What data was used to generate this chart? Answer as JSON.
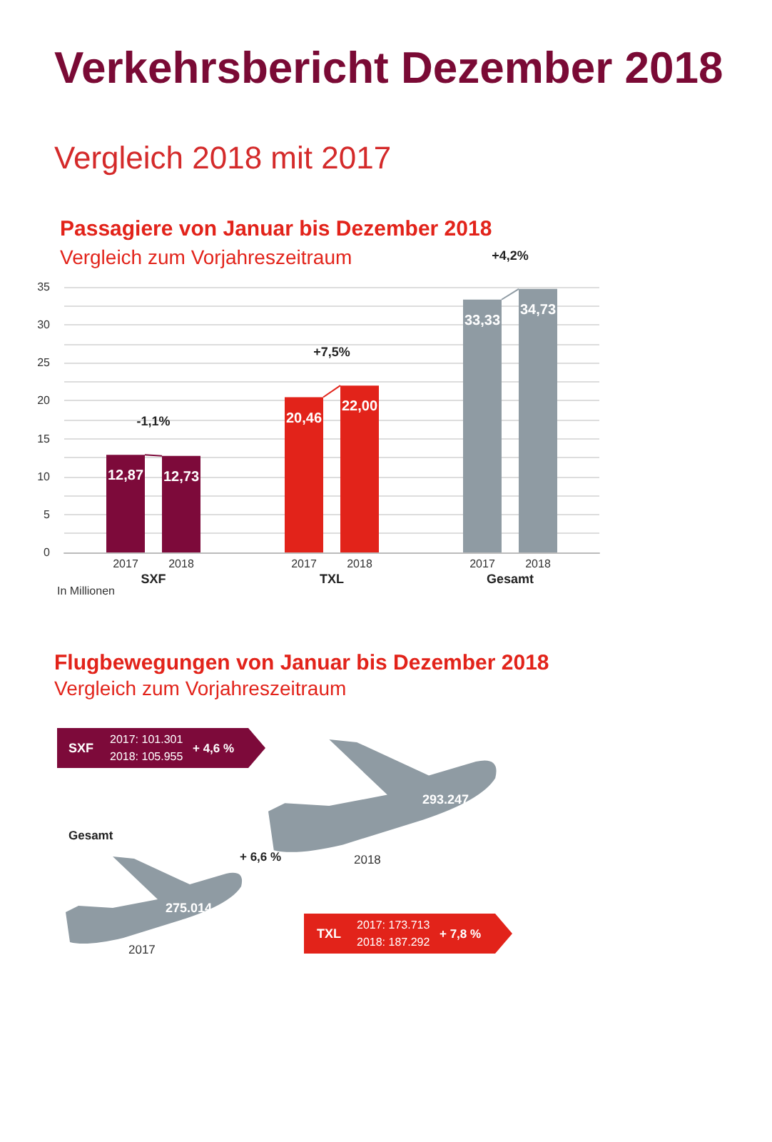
{
  "chart_data": [
    {
      "type": "other",
      "title": "Verkehrsbericht Dezember 2018",
      "subtitle": "Vergleich 2018 mit 2017"
    },
    {
      "type": "bar",
      "title": "Passagiere von Januar bis Dezember 2018",
      "subtitle": "Vergleich zum Vorjahreszeitraum",
      "categories": [
        "SXF",
        "TXL",
        "Gesamt"
      ],
      "series": [
        {
          "name": "2017",
          "colors": [
            "#7d0a3a",
            "#e2231a",
            "#8f9ba3"
          ],
          "values": [
            12.87,
            20.46,
            33.33
          ],
          "value_labels": [
            "12,87",
            "20,46",
            "33,33"
          ]
        },
        {
          "name": "2018",
          "colors": [
            "#7d0a3a",
            "#e2231a",
            "#8f9ba3"
          ],
          "values": [
            12.73,
            22.0,
            34.73
          ],
          "value_labels": [
            "12,73",
            "22,00",
            "34,73"
          ]
        }
      ],
      "ylim": [
        0,
        35
      ],
      "yticks": [
        0,
        {
          "value": 2.5,
          "label": null
        },
        5,
        {
          "value": 7.5,
          "label": null
        },
        10,
        {
          "value": 12.5,
          "label": null
        },
        15,
        {
          "value": 17.5,
          "label": null
        },
        20,
        {
          "value": 22.5,
          "label": null
        },
        25,
        {
          "value": 27.5,
          "label": null
        },
        30,
        {
          "value": 32.5,
          "label": null
        },
        35
      ],
      "grid": "y",
      "annotations": [
        "-1,1%",
        "+7,5%",
        "+4,2%",
        "In Millionen"
      ]
    },
    {
      "type": "other",
      "title": "Flugbewegungen von Januar bis Dezember 2018",
      "subtitle": "Vergleich zum Vorjahreszeitraum",
      "annotations": [
        "SXF",
        "2017: 101.301",
        "2018: 105.955",
        "+ 4,6 %",
        "Gesamt",
        "+ 6,6 %",
        "275.014",
        "2017",
        "293.247",
        "2018",
        "TXL",
        "2017: 173.713",
        "2018: 187.292",
        "+ 7,8 %"
      ]
    }
  ]
}
